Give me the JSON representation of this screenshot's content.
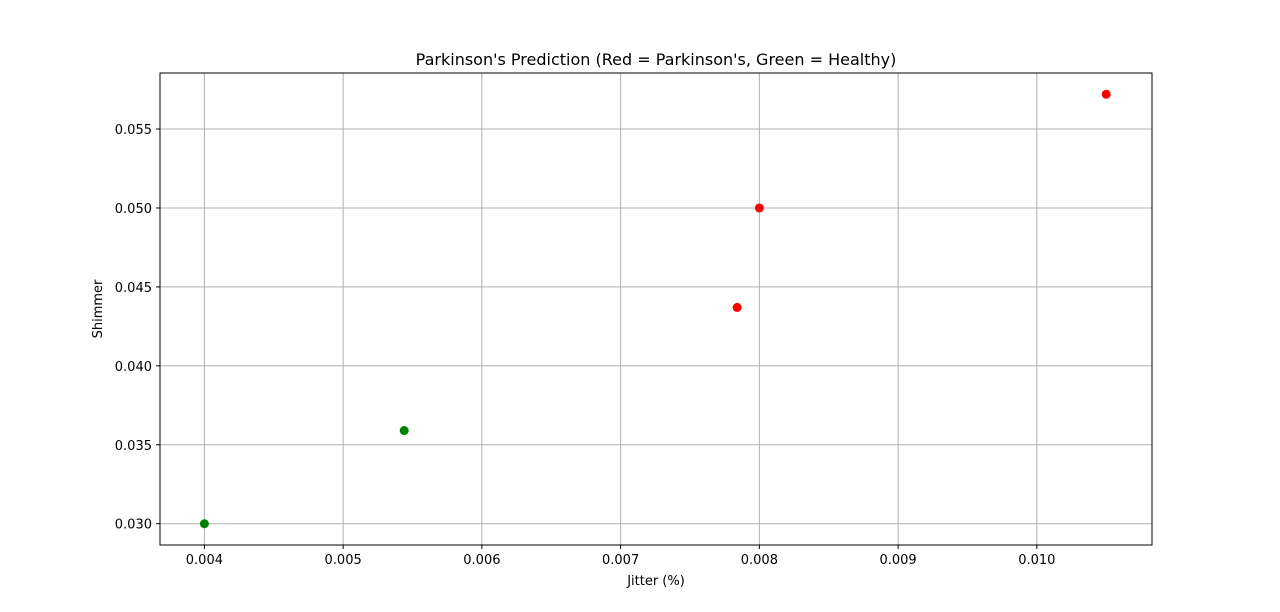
{
  "chart_data": {
    "type": "scatter",
    "title": "Parkinson's Prediction (Red = Parkinson's, Green = Healthy)",
    "xlabel": "Jitter (%)",
    "ylabel": "Shimmer",
    "xlim": [
      0.00368,
      0.01083
    ],
    "ylim": [
      0.02865,
      0.05855
    ],
    "xticks": [
      0.004,
      0.005,
      0.006,
      0.007,
      0.008,
      0.009,
      0.01
    ],
    "xtick_labels": [
      "0.004",
      "0.005",
      "0.006",
      "0.007",
      "0.008",
      "0.009",
      "0.010"
    ],
    "yticks": [
      0.03,
      0.035,
      0.04,
      0.045,
      0.05,
      0.055
    ],
    "ytick_labels": [
      "0.030",
      "0.035",
      "0.040",
      "0.045",
      "0.050",
      "0.055"
    ],
    "grid": true,
    "points": [
      {
        "x": 0.004,
        "y": 0.03,
        "color": "#008000"
      },
      {
        "x": 0.00544,
        "y": 0.0359,
        "color": "#008000"
      },
      {
        "x": 0.00784,
        "y": 0.0437,
        "color": "#ff0000"
      },
      {
        "x": 0.008,
        "y": 0.05,
        "color": "#ff0000"
      },
      {
        "x": 0.0105,
        "y": 0.0572,
        "color": "#ff0000"
      }
    ]
  }
}
